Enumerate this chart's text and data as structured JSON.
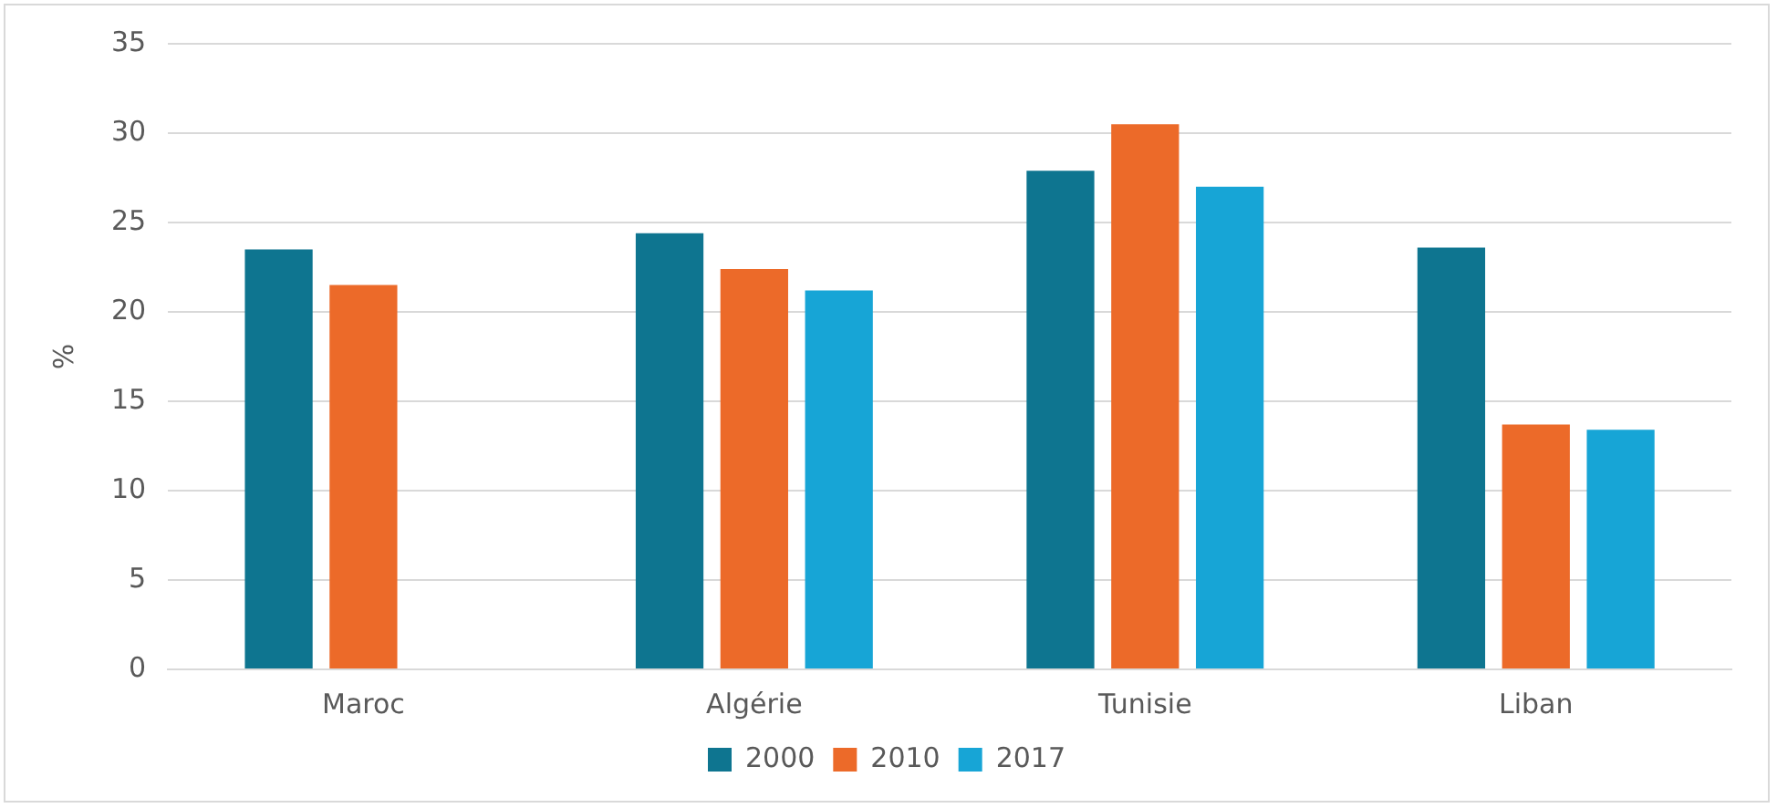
{
  "chart_data": {
    "type": "bar",
    "ylabel": "%",
    "categories": [
      "Maroc",
      "Algérie",
      "Tunisie",
      "Liban"
    ],
    "series": [
      {
        "name": "2000",
        "color": "#0e7590",
        "values": [
          23.5,
          24.4,
          27.9,
          23.6
        ]
      },
      {
        "name": "2010",
        "color": "#ec6a29",
        "values": [
          21.5,
          22.4,
          30.5,
          13.7
        ]
      },
      {
        "name": "2017",
        "color": "#17a5d6",
        "values": [
          null,
          21.2,
          27.0,
          13.4
        ]
      }
    ],
    "ylim": [
      0,
      35
    ],
    "yticks": [
      0,
      5,
      10,
      15,
      20,
      25,
      30,
      35
    ],
    "grid": "y",
    "legend": "bottom"
  }
}
